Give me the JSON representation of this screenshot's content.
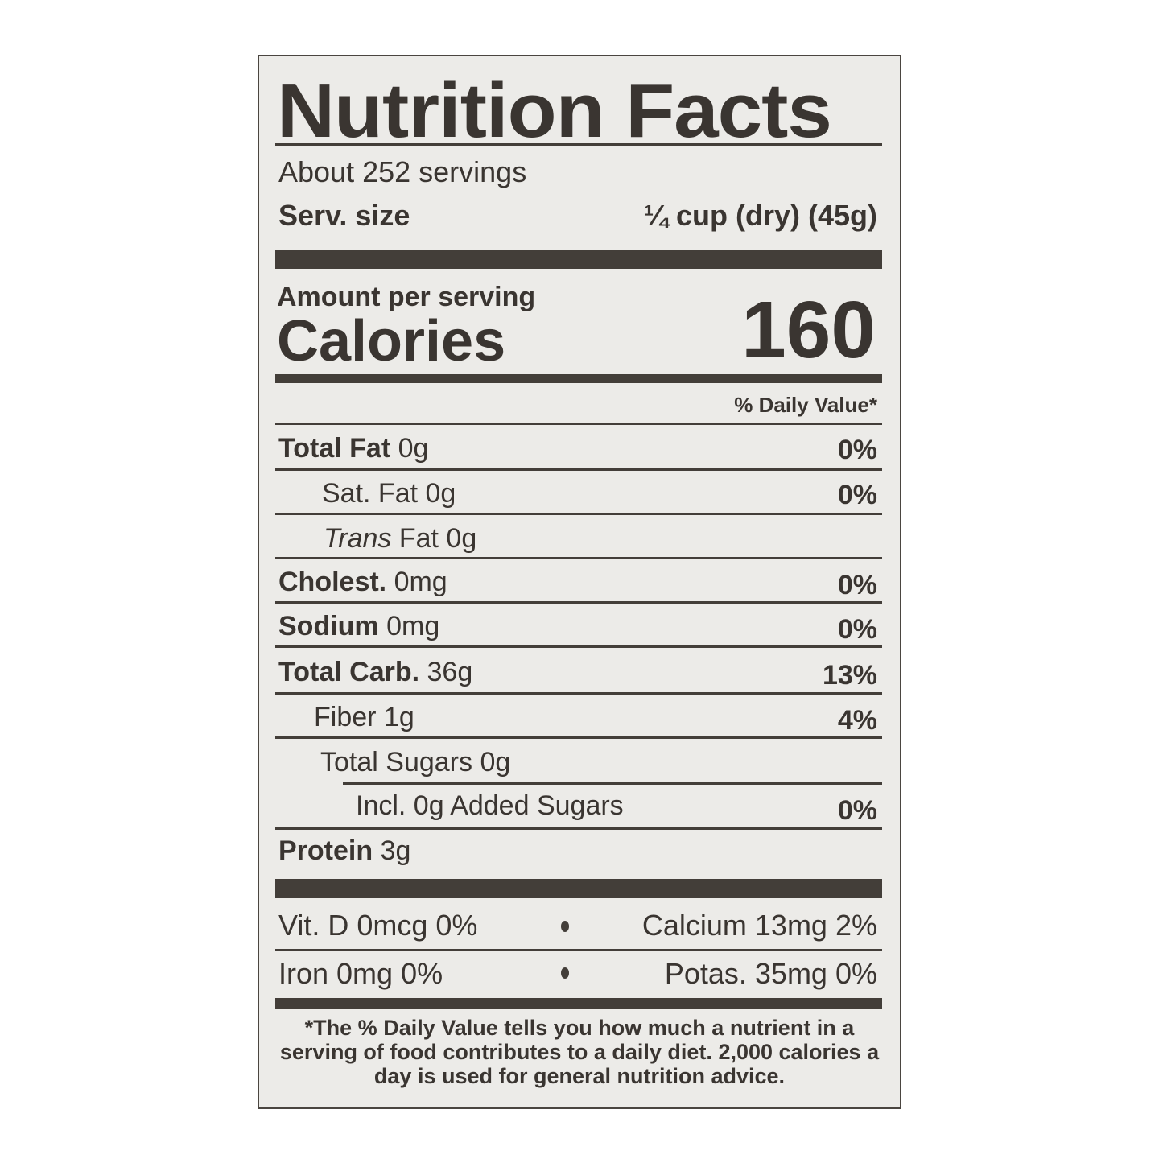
{
  "title": "Nutrition Facts",
  "servings": "About 252 servings",
  "serving_size": {
    "label": "Serv. size",
    "value": "¼ cup (dry) (45g)"
  },
  "amount_per_serving": "Amount per serving",
  "calories": {
    "label": "Calories",
    "value": "160"
  },
  "dv_header": "% Daily Value*",
  "nutrients": [
    {
      "name": "Total Fat",
      "amount": "0g",
      "dv": "0%"
    },
    {
      "name": "Sat. Fat",
      "amount": "0g",
      "dv": "0%"
    },
    {
      "name": "Trans",
      "name_rest": "Fat",
      "amount": "0g"
    },
    {
      "name": "Cholest.",
      "amount": "0mg",
      "dv": "0%"
    },
    {
      "name": "Sodium",
      "amount": "0mg",
      "dv": "0%"
    },
    {
      "name": "Total Carb.",
      "amount": "36g",
      "dv": "13%"
    },
    {
      "name": "Fiber",
      "amount": "1g",
      "dv": "4%"
    },
    {
      "name": "Total Sugars",
      "amount": "0g"
    },
    {
      "name": "Incl. 0g Added Sugars",
      "dv": "0%"
    },
    {
      "name": "Protein",
      "amount": "3g"
    }
  ],
  "vitamins": [
    {
      "left": "Vit. D 0mcg 0%",
      "right": "Calcium 13mg 2%"
    },
    {
      "left": "Iron 0mg 0%",
      "right": "Potas. 35mg 0%"
    }
  ],
  "footnote": "*The % Daily Value tells you how much a nutrient in a serving of food contributes to a daily diet. 2,000 calories a day is used for general nutrition advice."
}
